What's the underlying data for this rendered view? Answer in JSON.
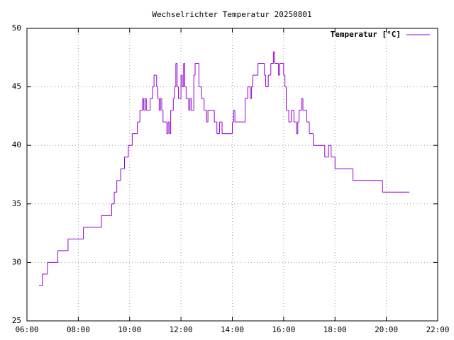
{
  "chart_data": {
    "type": "line",
    "line_style": "steps",
    "title": "Wechselrichter Temperatur 20250801",
    "x": [
      6.47,
      6.6,
      6.8,
      7.2,
      7.6,
      8.2,
      8.9,
      9.3,
      9.4,
      9.5,
      9.65,
      9.8,
      9.95,
      10.1,
      10.3,
      10.4,
      10.5,
      10.55,
      10.6,
      10.65,
      10.8,
      10.9,
      10.95,
      11.05,
      11.1,
      11.15,
      11.2,
      11.25,
      11.3,
      11.45,
      11.5,
      11.55,
      11.6,
      11.7,
      11.75,
      11.8,
      11.85,
      11.9,
      12.0,
      12.05,
      12.1,
      12.15,
      12.2,
      12.3,
      12.35,
      12.4,
      12.5,
      12.55,
      12.7,
      12.8,
      12.9,
      13.0,
      13.05,
      13.3,
      13.4,
      13.5,
      13.6,
      14.0,
      14.05,
      14.1,
      14.5,
      14.6,
      14.7,
      14.75,
      14.8,
      15.0,
      15.25,
      15.3,
      15.4,
      15.5,
      15.6,
      15.65,
      15.8,
      15.85,
      16.0,
      16.05,
      16.1,
      16.2,
      16.3,
      16.4,
      16.5,
      16.55,
      16.6,
      16.7,
      16.75,
      16.9,
      17.0,
      17.15,
      17.6,
      17.75,
      17.85,
      18.0,
      18.7,
      19.85,
      20.9
    ],
    "series": [
      {
        "name": "Temperatur [°C]",
        "color": "#9400d3",
        "values": [
          28,
          29,
          30,
          31,
          32,
          33,
          34,
          35,
          36,
          37,
          38,
          39,
          40,
          41,
          42,
          43,
          44,
          43,
          44,
          43,
          44,
          45,
          46,
          45,
          44,
          43,
          44,
          43,
          42,
          41,
          42,
          41,
          43,
          44,
          45,
          47,
          45,
          44,
          46,
          45,
          47,
          45,
          44,
          43,
          44,
          43,
          46,
          47,
          45,
          44,
          43,
          42,
          43,
          42,
          41,
          42,
          41,
          42,
          43,
          42,
          44,
          45,
          44,
          45,
          46,
          47,
          46,
          45,
          46,
          47,
          48,
          47,
          46,
          47,
          46,
          45,
          43,
          42,
          43,
          42,
          41,
          42,
          43,
          44,
          43,
          42,
          41,
          40,
          39,
          40,
          39,
          38,
          37,
          36,
          36
        ]
      }
    ],
    "xlim": [
      6,
      22
    ],
    "xticks": [
      {
        "value": 6,
        "label": "06:00"
      },
      {
        "value": 8,
        "label": "08:00"
      },
      {
        "value": 10,
        "label": "10:00"
      },
      {
        "value": 12,
        "label": "12:00"
      },
      {
        "value": 14,
        "label": "14:00"
      },
      {
        "value": 16,
        "label": "16:00"
      },
      {
        "value": 18,
        "label": "18:00"
      },
      {
        "value": 20,
        "label": "20:00"
      },
      {
        "value": 22,
        "label": "22:00"
      }
    ],
    "ylim": [
      25,
      50
    ],
    "yticks": [
      25,
      30,
      35,
      40,
      45,
      50
    ],
    "grid": true,
    "legend": "top-right"
  }
}
